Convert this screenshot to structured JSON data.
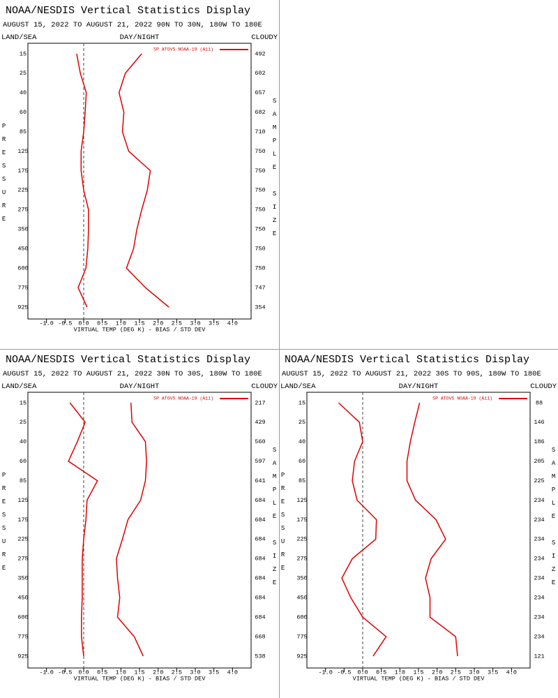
{
  "chart_data": [
    {
      "type": "line",
      "title": "NOAA/NESDIS Vertical Statistics Display",
      "subtitle": "AUGUST 15, 2022 TO AUGUST 21, 2022 90N TO 30N, 180W TO 180E",
      "land_sea": "LAND/SEA",
      "day_night": "DAY/NIGHT",
      "cloudy": "CLOUDY",
      "ylabel": "PRESSURE",
      "y2label": "SAMPLE SIZE",
      "xlabel": "VIRTUAL TEMP (DEG K) - BIAS / STD DEV",
      "categories": [
        15,
        25,
        40,
        60,
        85,
        125,
        175,
        225,
        275,
        350,
        450,
        600,
        775,
        925
      ],
      "sample_sizes": [
        492,
        602,
        657,
        682,
        710,
        750,
        750,
        750,
        750,
        750,
        750,
        750,
        747,
        354
      ],
      "series": [
        {
          "name": "SP ATOVS NOAA-19 (A11)",
          "color": "#dd0000",
          "values": [
            -0.19,
            -0.09,
            0.07,
            0.04,
            0.0,
            -0.07,
            -0.07,
            0.0,
            0.13,
            0.13,
            0.11,
            0.06,
            -0.15,
            0.09
          ]
        },
        {
          "color": "#dd0000",
          "values": [
            1.56,
            1.12,
            0.95,
            1.08,
            1.04,
            1.21,
            1.79,
            1.71,
            1.56,
            1.43,
            1.34,
            1.15,
            1.66,
            2.29
          ]
        }
      ],
      "xlim": [
        -1.5,
        4.5
      ],
      "xticks": [
        {
          "value": -1,
          "label": "-1.0"
        },
        -0.5,
        {
          "value": 0,
          "label": "0.0"
        },
        0.5,
        {
          "value": 1,
          "label": "1.0"
        },
        1.5,
        {
          "value": 2,
          "label": "2.0"
        },
        2.5,
        {
          "value": 3,
          "label": "3.0"
        },
        3.5,
        {
          "value": 4,
          "label": "4.0"
        }
      ],
      "zero_line": true
    },
    {
      "type": "line",
      "title": "NOAA/NESDIS Vertical Statistics Display",
      "subtitle": "AUGUST 15, 2022 TO AUGUST 21, 2022 30N TO 30S, 180W TO 180E",
      "land_sea": "LAND/SEA",
      "day_night": "DAY/NIGHT",
      "cloudy": "CLOUDY",
      "ylabel": "PRESSURE",
      "y2label": "SAMPLE SIZE",
      "xlabel": "VIRTUAL TEMP (DEG K) - BIAS / STD DEV",
      "categories": [
        15,
        25,
        40,
        60,
        85,
        125,
        175,
        225,
        275,
        350,
        450,
        600,
        775,
        925
      ],
      "sample_sizes": [
        217,
        429,
        560,
        597,
        641,
        684,
        684,
        684,
        684,
        684,
        684,
        684,
        668,
        538
      ],
      "series": [
        {
          "name": "SP ATOVS NOAA-19 (A11)",
          "color": "#dd0000",
          "values": [
            -0.37,
            0.04,
            -0.17,
            -0.41,
            0.37,
            0.09,
            0.06,
            0.0,
            -0.04,
            -0.04,
            -0.04,
            -0.06,
            -0.06,
            0.0
          ]
        },
        {
          "color": "#dd0000",
          "values": [
            1.27,
            1.3,
            1.66,
            1.69,
            1.66,
            1.53,
            1.19,
            1.04,
            0.88,
            0.91,
            0.97,
            0.91,
            1.36,
            1.6
          ]
        }
      ],
      "xlim": [
        -1.5,
        4.5
      ],
      "xticks": [
        {
          "value": -1,
          "label": "-1.0"
        },
        -0.5,
        {
          "value": 0,
          "label": "0.0"
        },
        0.5,
        {
          "value": 1,
          "label": "1.0"
        },
        1.5,
        {
          "value": 2,
          "label": "2.0"
        },
        2.5,
        {
          "value": 3,
          "label": "3.0"
        },
        3.5,
        {
          "value": 4,
          "label": "4.0"
        }
      ],
      "zero_line": true
    },
    {
      "type": "line",
      "title": "NOAA/NESDIS Vertical Statistics Display",
      "subtitle": "AUGUST 15, 2022 TO AUGUST 21, 2022 30S TO 90S, 180W TO 180E",
      "land_sea": "LAND/SEA",
      "day_night": "DAY/NIGHT",
      "cloudy": "CLOUDY",
      "ylabel": "PRESSURE",
      "y2label": "SAMPLE SIZE",
      "xlabel": "VIRTUAL TEMP (DEG K) - BIAS / STD DEV",
      "categories": [
        15,
        25,
        40,
        60,
        85,
        125,
        175,
        225,
        275,
        350,
        450,
        600,
        775,
        925
      ],
      "sample_sizes": [
        88,
        146,
        186,
        205,
        225,
        234,
        234,
        234,
        234,
        234,
        234,
        234,
        234,
        121
      ],
      "series": [
        {
          "name": "SP ATOVS NOAA-19 (A11)",
          "color": "#dd0000",
          "values": [
            -0.65,
            -0.09,
            0.0,
            -0.22,
            -0.28,
            -0.15,
            0.37,
            0.35,
            -0.28,
            -0.56,
            -0.32,
            0.0,
            0.63,
            0.28
          ]
        },
        {
          "color": "#dd0000",
          "values": [
            1.53,
            1.4,
            1.28,
            1.19,
            1.19,
            1.42,
            1.97,
            2.23,
            1.84,
            1.69,
            1.81,
            1.81,
            2.5,
            2.55
          ]
        }
      ],
      "xlim": [
        -1.5,
        4.5
      ],
      "xticks": [
        {
          "value": -1,
          "label": "-1.0"
        },
        -0.5,
        {
          "value": 0,
          "label": "0.0"
        },
        0.5,
        {
          "value": 1,
          "label": "1.0"
        },
        1.5,
        {
          "value": 2,
          "label": "2.0"
        },
        2.5,
        {
          "value": 3,
          "label": "3.0"
        },
        3.5,
        {
          "value": 4,
          "label": "4.0"
        }
      ],
      "zero_line": true
    }
  ]
}
